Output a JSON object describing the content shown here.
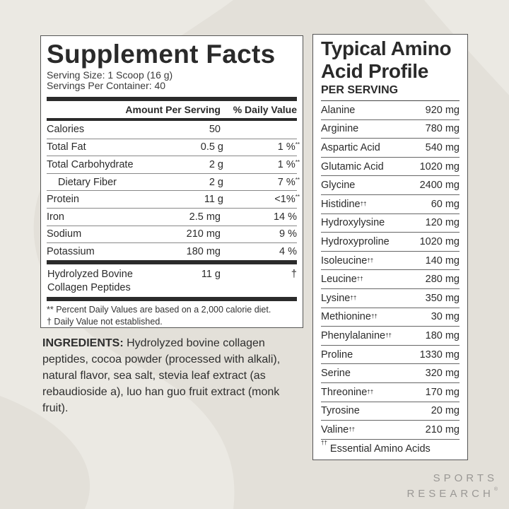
{
  "supplement_facts": {
    "title": "Supplement Facts",
    "serving_size": "Serving Size: 1 Scoop (16 g)",
    "servings_per_container": "Servings Per Container: 40",
    "col_amount": "Amount Per Serving",
    "col_dv": "% Daily Value",
    "rows": [
      {
        "name": "Calories",
        "amount": "50",
        "dv": "",
        "mark": ""
      },
      {
        "name": "Total Fat",
        "amount": "0.5 g",
        "dv": "1 %",
        "mark": "**"
      },
      {
        "name": "Total Carbohydrate",
        "amount": "2 g",
        "dv": "1 %",
        "mark": "**"
      },
      {
        "name": "Dietary Fiber",
        "amount": "2 g",
        "dv": "7 %",
        "mark": "**"
      },
      {
        "name": "Protein",
        "amount": "11 g",
        "dv": "<1%",
        "mark": "**"
      },
      {
        "name": "Iron",
        "amount": "2.5 mg",
        "dv": "14 %",
        "mark": ""
      },
      {
        "name": "Sodium",
        "amount": "210 mg",
        "dv": "9 %",
        "mark": ""
      },
      {
        "name": "Potassium",
        "amount": "180 mg",
        "dv": "4 %",
        "mark": ""
      }
    ],
    "collagen": {
      "line1": "Hydrolyzed Bovine",
      "line2": "Collagen Peptides",
      "amount": "11 g",
      "dv": "†"
    },
    "footnote1": "** Percent Daily Values are based on a 2,000 calorie diet.",
    "footnote2": "† Daily Value not established."
  },
  "ingredients": {
    "label": "INGREDIENTS:",
    "text": " Hydrolyzed bovine collagen peptides, cocoa powder (processed with alkali), natural flavor, sea salt, stevia leaf extract (as rebaudioside a), luo han guo fruit extract (monk fruit)."
  },
  "amino_profile": {
    "title_line1": "Typical Amino",
    "title_line2": "Acid Profile",
    "subtitle": "PER SERVING",
    "rows": [
      {
        "name": "Alanine",
        "value": "920 mg",
        "mark": ""
      },
      {
        "name": "Arginine",
        "value": "780 mg",
        "mark": ""
      },
      {
        "name": "Aspartic Acid",
        "value": "540 mg",
        "mark": ""
      },
      {
        "name": "Glutamic Acid",
        "value": "1020 mg",
        "mark": ""
      },
      {
        "name": "Glycine",
        "value": "2400 mg",
        "mark": ""
      },
      {
        "name": "Histidine",
        "value": "60 mg",
        "mark": "††"
      },
      {
        "name": "Hydroxylysine",
        "value": "120 mg",
        "mark": ""
      },
      {
        "name": "Hydroxyproline",
        "value": "1020 mg",
        "mark": ""
      },
      {
        "name": "Isoleucine",
        "value": "140 mg",
        "mark": "††"
      },
      {
        "name": "Leucine",
        "value": "280 mg",
        "mark": "††"
      },
      {
        "name": "Lysine",
        "value": "350 mg",
        "mark": "††"
      },
      {
        "name": "Methionine",
        "value": "30 mg",
        "mark": "††"
      },
      {
        "name": "Phenylalanine",
        "value": "180 mg",
        "mark": "††"
      },
      {
        "name": "Proline",
        "value": "1330 mg",
        "mark": ""
      },
      {
        "name": "Serine",
        "value": "320 mg",
        "mark": ""
      },
      {
        "name": "Threonine",
        "value": "170 mg",
        "mark": "††"
      },
      {
        "name": "Tyrosine",
        "value": "20 mg",
        "mark": ""
      },
      {
        "name": "Valine",
        "value": "210 mg",
        "mark": "††"
      }
    ],
    "footnote_mark": "††",
    "footnote": " Essential Amino Acids"
  },
  "brand": {
    "line1": "SPORTS",
    "line2": "RESEARCH",
    "reg": "®"
  },
  "colors": {
    "background": "#e3e0d9",
    "panel": "#ffffff",
    "text": "#2b2b2b",
    "brand": "#9a9895"
  }
}
